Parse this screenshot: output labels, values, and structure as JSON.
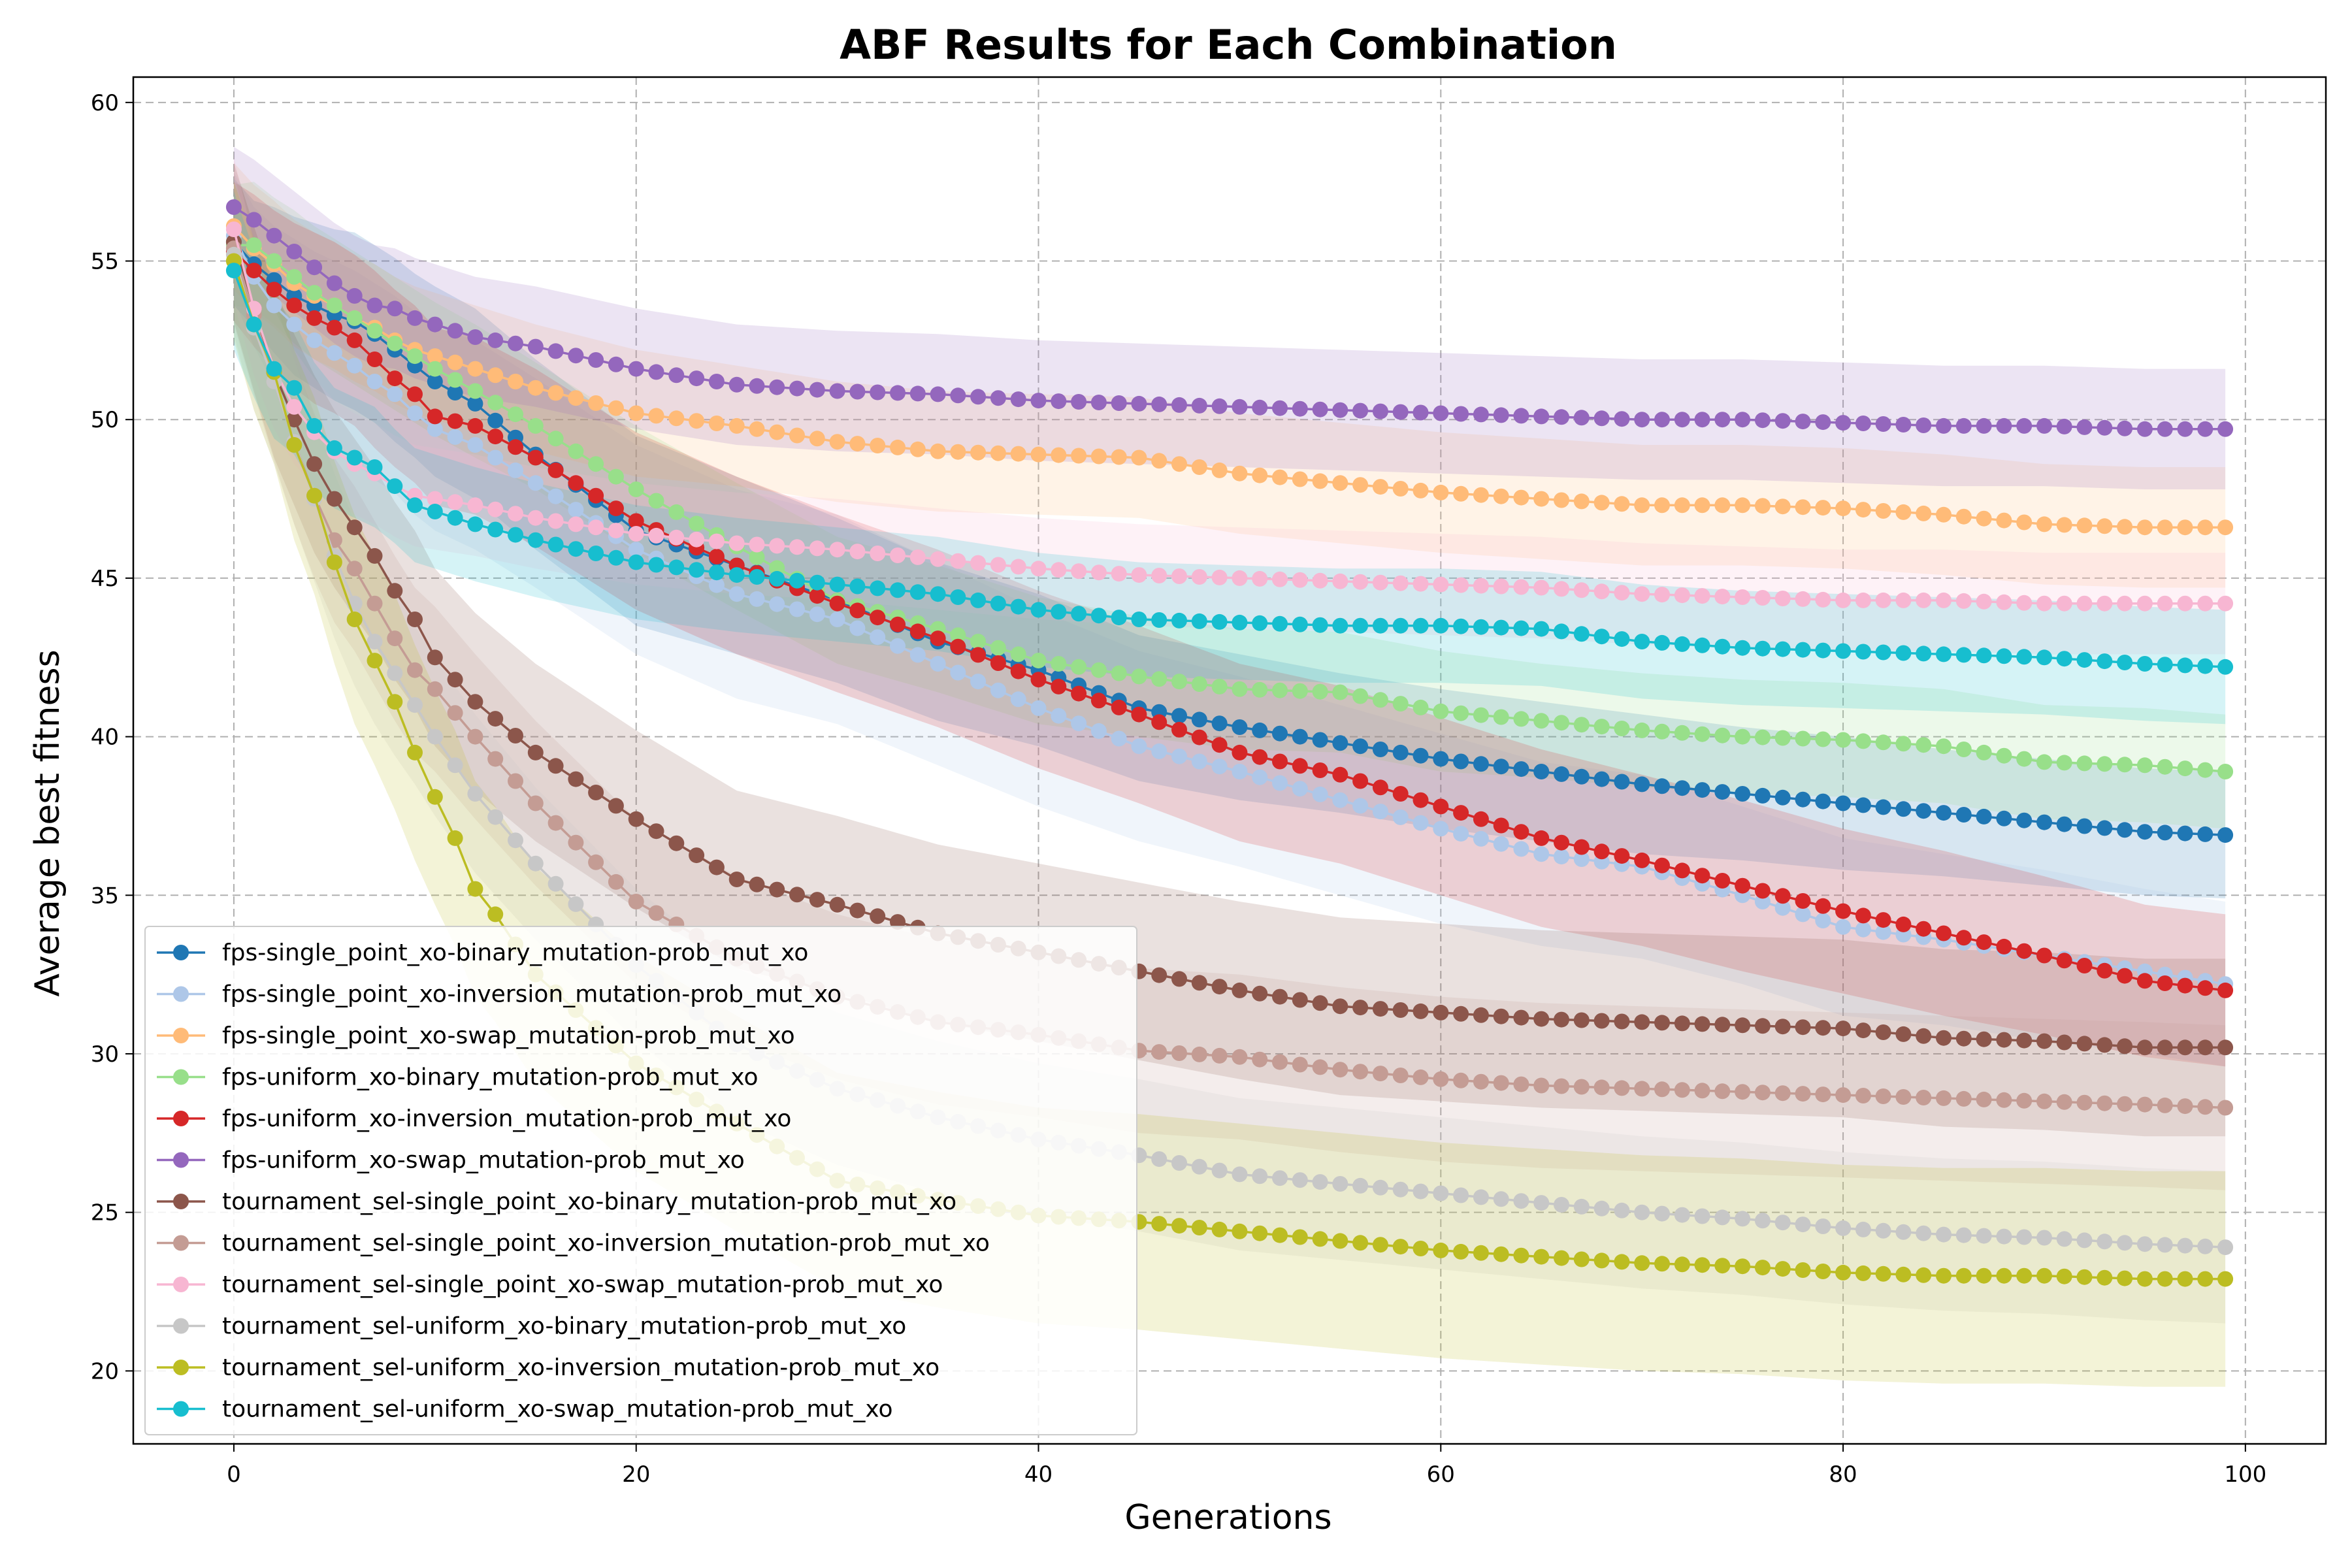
{
  "chart_data": {
    "type": "line",
    "title": "ABF Results for Each Combination",
    "xlabel": "Generations",
    "ylabel": "Average best fitness",
    "xlim": [
      -5,
      104
    ],
    "ylim": [
      17.7,
      60.8
    ],
    "xticks": [
      0,
      20,
      40,
      60,
      80,
      100
    ],
    "yticks": [
      20,
      25,
      30,
      35,
      40,
      45,
      50,
      55,
      60
    ],
    "grid": true,
    "legend_position": "lower-left",
    "band": "shaded spread around each series",
    "series": [
      {
        "name": "fps-single_point_xo-binary_mutation-prob_mut_xo",
        "color": "#1f77b4",
        "x": [
          0,
          1,
          2,
          3,
          4,
          5,
          6,
          7,
          8,
          9,
          10,
          12,
          15,
          20,
          25,
          30,
          35,
          40,
          45,
          50,
          55,
          60,
          65,
          70,
          75,
          80,
          85,
          90,
          95,
          99
        ],
        "y": [
          55.6,
          54.9,
          54.4,
          53.9,
          53.6,
          53.3,
          53.1,
          52.7,
          52.2,
          51.7,
          51.2,
          50.5,
          48.9,
          46.5,
          45.4,
          44.3,
          43.0,
          42.1,
          40.9,
          40.3,
          39.8,
          39.3,
          38.9,
          38.5,
          38.2,
          37.9,
          37.6,
          37.3,
          37.0,
          36.9
        ],
        "band": [
          2.0,
          2.0,
          2.3,
          2.5,
          2.6,
          2.7,
          2.8,
          2.8,
          2.9,
          2.9,
          3.0,
          3.0,
          3.0,
          3.0,
          2.8,
          2.6,
          2.5,
          2.4,
          2.3,
          2.3,
          2.2,
          2.2,
          2.2,
          2.2,
          2.1,
          2.1,
          2.0,
          2.0,
          2.0,
          2.0
        ]
      },
      {
        "name": "fps-single_point_xo-inversion_mutation-prob_mut_xo",
        "color": "#aec7e8",
        "x": [
          0,
          1,
          2,
          3,
          4,
          5,
          6,
          7,
          8,
          9,
          10,
          12,
          15,
          20,
          25,
          30,
          35,
          40,
          45,
          50,
          55,
          60,
          65,
          70,
          75,
          80,
          85,
          90,
          95,
          99
        ],
        "y": [
          55.8,
          54.5,
          53.6,
          53.0,
          52.5,
          52.1,
          51.7,
          51.2,
          50.8,
          50.2,
          49.7,
          49.2,
          48.0,
          45.9,
          44.5,
          43.7,
          42.3,
          40.9,
          39.7,
          38.9,
          38.0,
          37.1,
          36.3,
          35.9,
          35.0,
          34.0,
          33.6,
          33.1,
          32.6,
          32.2
        ],
        "band": [
          2.0,
          2.2,
          2.5,
          2.7,
          2.8,
          2.9,
          3.0,
          3.1,
          3.1,
          3.2,
          3.2,
          3.3,
          3.3,
          3.3,
          3.3,
          3.3,
          3.2,
          3.1,
          3.0,
          3.0,
          3.0,
          3.0,
          2.9,
          2.9,
          2.8,
          2.8,
          2.7,
          2.7,
          2.6,
          2.6
        ]
      },
      {
        "name": "fps-single_point_xo-swap_mutation-prob_mut_xo",
        "color": "#ffbb78",
        "x": [
          0,
          1,
          2,
          3,
          4,
          5,
          6,
          7,
          8,
          9,
          10,
          12,
          15,
          20,
          25,
          30,
          35,
          40,
          45,
          50,
          55,
          60,
          65,
          70,
          75,
          80,
          85,
          90,
          95,
          99
        ],
        "y": [
          56.1,
          55.4,
          54.9,
          54.3,
          53.9,
          53.6,
          53.2,
          52.9,
          52.5,
          52.2,
          52.0,
          51.6,
          51.0,
          50.2,
          49.8,
          49.3,
          49.0,
          48.9,
          48.8,
          48.3,
          48.0,
          47.7,
          47.5,
          47.3,
          47.3,
          47.2,
          47.0,
          46.7,
          46.6,
          46.6
        ],
        "band": [
          2.0,
          2.0,
          2.0,
          2.0,
          2.0,
          2.0,
          2.0,
          2.0,
          2.0,
          2.0,
          2.0,
          2.0,
          2.0,
          2.0,
          1.9,
          1.9,
          1.9,
          1.9,
          1.9,
          1.9,
          1.9,
          1.9,
          1.9,
          1.9,
          1.9,
          1.9,
          1.9,
          1.9,
          1.9,
          1.9
        ]
      },
      {
        "name": "fps-uniform_xo-binary_mutation-prob_mut_xo",
        "color": "#98df8a",
        "x": [
          0,
          1,
          2,
          3,
          4,
          5,
          6,
          7,
          8,
          9,
          10,
          12,
          15,
          20,
          25,
          30,
          35,
          40,
          45,
          50,
          55,
          60,
          65,
          70,
          75,
          80,
          85,
          90,
          95,
          99
        ],
        "y": [
          55.5,
          55.5,
          55.0,
          54.5,
          54.0,
          53.6,
          53.2,
          52.8,
          52.4,
          52.0,
          51.6,
          50.9,
          49.8,
          47.8,
          46.0,
          44.3,
          43.4,
          42.4,
          41.9,
          41.5,
          41.4,
          40.8,
          40.5,
          40.2,
          40.0,
          39.9,
          39.7,
          39.2,
          39.1,
          38.9
        ],
        "band": [
          1.9,
          2.0,
          2.0,
          2.1,
          2.1,
          2.1,
          2.1,
          2.1,
          2.1,
          2.1,
          2.1,
          2.1,
          2.0,
          2.0,
          2.0,
          2.0,
          2.0,
          2.0,
          1.9,
          1.9,
          1.9,
          1.9,
          1.8,
          1.8,
          1.8,
          1.8,
          1.8,
          1.8,
          1.8,
          1.8
        ]
      },
      {
        "name": "fps-uniform_xo-inversion_mutation-prob_mut_xo",
        "color": "#d62728",
        "x": [
          0,
          1,
          2,
          3,
          4,
          5,
          6,
          7,
          8,
          9,
          10,
          12,
          15,
          20,
          25,
          30,
          35,
          40,
          45,
          50,
          55,
          60,
          65,
          70,
          75,
          80,
          85,
          90,
          95,
          99
        ],
        "y": [
          55.3,
          54.7,
          54.1,
          53.6,
          53.2,
          52.9,
          52.5,
          51.9,
          51.3,
          50.8,
          50.1,
          49.8,
          48.8,
          46.8,
          45.4,
          44.2,
          43.1,
          41.8,
          40.7,
          39.5,
          38.8,
          37.8,
          36.8,
          36.1,
          35.3,
          34.5,
          33.8,
          33.1,
          32.3,
          32.0
        ],
        "band": [
          2.2,
          2.4,
          2.5,
          2.6,
          2.7,
          2.7,
          2.7,
          2.8,
          2.8,
          2.8,
          2.8,
          2.8,
          2.8,
          2.8,
          2.8,
          2.8,
          2.8,
          2.8,
          2.8,
          2.8,
          2.8,
          2.8,
          2.8,
          2.7,
          2.7,
          2.6,
          2.6,
          2.5,
          2.4,
          2.4
        ]
      },
      {
        "name": "fps-uniform_xo-swap_mutation-prob_mut_xo",
        "color": "#9467bd",
        "x": [
          0,
          1,
          2,
          3,
          4,
          5,
          6,
          7,
          8,
          9,
          10,
          12,
          15,
          20,
          25,
          30,
          35,
          40,
          45,
          50,
          55,
          60,
          65,
          70,
          75,
          80,
          85,
          90,
          95,
          99
        ],
        "y": [
          56.7,
          56.3,
          55.8,
          55.3,
          54.8,
          54.3,
          53.9,
          53.6,
          53.5,
          53.2,
          53.0,
          52.6,
          52.3,
          51.6,
          51.1,
          50.9,
          50.8,
          50.6,
          50.5,
          50.4,
          50.3,
          50.2,
          50.1,
          50.0,
          50.0,
          49.9,
          49.8,
          49.8,
          49.7,
          49.7
        ],
        "band": [
          1.9,
          1.9,
          1.9,
          1.9,
          1.9,
          1.9,
          1.9,
          1.9,
          1.9,
          1.9,
          1.9,
          1.9,
          1.9,
          1.9,
          1.9,
          1.9,
          1.9,
          1.9,
          1.9,
          1.9,
          1.9,
          1.9,
          1.9,
          1.9,
          1.9,
          1.9,
          1.9,
          1.9,
          1.9,
          1.9
        ]
      },
      {
        "name": "tournament_sel-single_point_xo-binary_mutation-prob_mut_xo",
        "color": "#8c564b",
        "x": [
          0,
          1,
          2,
          3,
          4,
          5,
          6,
          7,
          8,
          9,
          10,
          12,
          15,
          20,
          25,
          30,
          35,
          40,
          45,
          50,
          55,
          60,
          65,
          70,
          75,
          80,
          85,
          90,
          95,
          99
        ],
        "y": [
          55.6,
          53.5,
          51.5,
          50.0,
          48.6,
          47.5,
          46.6,
          45.7,
          44.6,
          43.7,
          42.5,
          41.1,
          39.5,
          37.4,
          35.5,
          34.7,
          33.8,
          33.2,
          32.6,
          32.0,
          31.5,
          31.3,
          31.1,
          31.0,
          30.9,
          30.8,
          30.5,
          30.4,
          30.2,
          30.2
        ],
        "band": [
          2.5,
          2.6,
          2.7,
          2.7,
          2.8,
          2.8,
          2.8,
          2.8,
          2.8,
          2.8,
          2.8,
          2.8,
          2.8,
          2.8,
          2.8,
          2.8,
          2.8,
          2.8,
          2.8,
          2.8,
          2.8,
          2.8,
          2.8,
          2.8,
          2.8,
          2.8,
          2.8,
          2.8,
          2.8,
          2.8
        ]
      },
      {
        "name": "tournament_sel-single_point_xo-inversion_mutation-prob_mut_xo",
        "color": "#c49c94",
        "x": [
          0,
          1,
          2,
          3,
          4,
          5,
          6,
          7,
          8,
          9,
          10,
          12,
          15,
          20,
          25,
          30,
          35,
          40,
          45,
          50,
          55,
          60,
          65,
          70,
          75,
          80,
          85,
          90,
          95,
          99
        ],
        "y": [
          55.4,
          53.3,
          51.2,
          49.3,
          47.6,
          46.2,
          45.3,
          44.2,
          43.1,
          42.1,
          41.5,
          40.0,
          37.9,
          34.8,
          33.0,
          31.8,
          31.0,
          30.6,
          30.1,
          29.9,
          29.5,
          29.2,
          29.0,
          28.9,
          28.8,
          28.7,
          28.6,
          28.5,
          28.4,
          28.3
        ],
        "band": [
          2.4,
          2.5,
          2.5,
          2.6,
          2.6,
          2.6,
          2.6,
          2.6,
          2.6,
          2.6,
          2.6,
          2.6,
          2.6,
          2.6,
          2.6,
          2.6,
          2.6,
          2.6,
          2.6,
          2.6,
          2.6,
          2.6,
          2.6,
          2.6,
          2.6,
          2.6,
          2.6,
          2.6,
          2.6,
          2.6
        ]
      },
      {
        "name": "tournament_sel-single_point_xo-swap_mutation-prob_mut_xo",
        "color": "#f7b6d2",
        "x": [
          0,
          1,
          2,
          3,
          4,
          5,
          6,
          7,
          8,
          9,
          10,
          12,
          15,
          20,
          25,
          30,
          35,
          40,
          45,
          50,
          55,
          60,
          65,
          70,
          75,
          80,
          85,
          90,
          95,
          99
        ],
        "y": [
          56.0,
          53.5,
          51.6,
          50.4,
          49.6,
          49.0,
          48.6,
          48.3,
          47.9,
          47.6,
          47.5,
          47.3,
          46.9,
          46.4,
          46.1,
          45.9,
          45.6,
          45.3,
          45.1,
          45.0,
          44.9,
          44.8,
          44.7,
          44.5,
          44.4,
          44.3,
          44.3,
          44.2,
          44.2,
          44.2
        ],
        "band": [
          2.3,
          2.1,
          1.9,
          1.8,
          1.7,
          1.6,
          1.6,
          1.6,
          1.6,
          1.6,
          1.6,
          1.6,
          1.6,
          1.6,
          1.6,
          1.6,
          1.6,
          1.6,
          1.6,
          1.6,
          1.6,
          1.6,
          1.6,
          1.6,
          1.6,
          1.6,
          1.6,
          1.6,
          1.6,
          1.6
        ]
      },
      {
        "name": "tournament_sel-uniform_xo-binary_mutation-prob_mut_xo",
        "color": "#c7c7c7",
        "x": [
          0,
          1,
          2,
          3,
          4,
          5,
          6,
          7,
          8,
          9,
          10,
          12,
          15,
          20,
          25,
          30,
          35,
          40,
          45,
          50,
          55,
          60,
          65,
          70,
          75,
          80,
          85,
          90,
          95,
          99
        ],
        "y": [
          55.2,
          52.9,
          51.2,
          49.3,
          47.5,
          45.7,
          44.2,
          43.0,
          42.0,
          41.0,
          40.0,
          38.2,
          36.0,
          32.8,
          30.3,
          28.9,
          28.0,
          27.3,
          26.8,
          26.2,
          25.9,
          25.6,
          25.3,
          25.0,
          24.8,
          24.5,
          24.3,
          24.2,
          24.0,
          23.9
        ],
        "band": [
          2.5,
          2.6,
          2.6,
          2.6,
          2.6,
          2.6,
          2.6,
          2.6,
          2.6,
          2.5,
          2.5,
          2.5,
          2.4,
          2.4,
          2.4,
          2.4,
          2.4,
          2.4,
          2.4,
          2.4,
          2.4,
          2.4,
          2.4,
          2.4,
          2.4,
          2.4,
          2.4,
          2.4,
          2.4,
          2.4
        ]
      },
      {
        "name": "tournament_sel-uniform_xo-inversion_mutation-prob_mut_xo",
        "color": "#bcbd22",
        "x": [
          0,
          1,
          2,
          3,
          4,
          5,
          6,
          7,
          8,
          9,
          10,
          11,
          12,
          13,
          15,
          20,
          25,
          30,
          35,
          40,
          45,
          50,
          55,
          60,
          65,
          70,
          75,
          80,
          85,
          90,
          95,
          99
        ],
        "y": [
          55.0,
          53.0,
          51.5,
          49.2,
          47.6,
          45.5,
          43.7,
          42.4,
          41.1,
          39.5,
          38.1,
          36.8,
          35.2,
          34.4,
          32.5,
          29.7,
          27.8,
          26.0,
          25.4,
          24.9,
          24.7,
          24.4,
          24.1,
          23.8,
          23.6,
          23.4,
          23.3,
          23.1,
          23.0,
          23.0,
          22.9,
          22.9
        ],
        "band": [
          2.5,
          2.7,
          2.9,
          3.0,
          3.1,
          3.2,
          3.3,
          3.3,
          3.4,
          3.4,
          3.4,
          3.4,
          3.4,
          3.4,
          3.4,
          3.4,
          3.4,
          3.4,
          3.4,
          3.4,
          3.4,
          3.4,
          3.4,
          3.4,
          3.4,
          3.4,
          3.4,
          3.4,
          3.4,
          3.4,
          3.4,
          3.4
        ]
      },
      {
        "name": "tournament_sel-uniform_xo-swap_mutation-prob_mut_xo",
        "color": "#17becf",
        "x": [
          0,
          1,
          2,
          3,
          4,
          5,
          6,
          7,
          8,
          9,
          10,
          12,
          15,
          20,
          25,
          30,
          35,
          40,
          45,
          50,
          55,
          60,
          65,
          70,
          75,
          80,
          85,
          90,
          95,
          99
        ],
        "y": [
          54.7,
          53.0,
          51.6,
          51.0,
          49.8,
          49.1,
          48.8,
          48.5,
          47.9,
          47.3,
          47.1,
          46.7,
          46.2,
          45.5,
          45.1,
          44.8,
          44.5,
          44.0,
          43.7,
          43.6,
          43.5,
          43.5,
          43.4,
          43.0,
          42.8,
          42.7,
          42.6,
          42.5,
          42.3,
          42.2
        ],
        "band": [
          2.5,
          2.3,
          2.2,
          2.1,
          2.0,
          1.9,
          1.9,
          1.9,
          1.8,
          1.8,
          1.8,
          1.8,
          1.8,
          1.8,
          1.8,
          1.8,
          1.8,
          1.8,
          1.8,
          1.8,
          1.8,
          1.8,
          1.8,
          1.8,
          1.8,
          1.8,
          1.8,
          1.8,
          1.8,
          1.8
        ]
      }
    ]
  }
}
